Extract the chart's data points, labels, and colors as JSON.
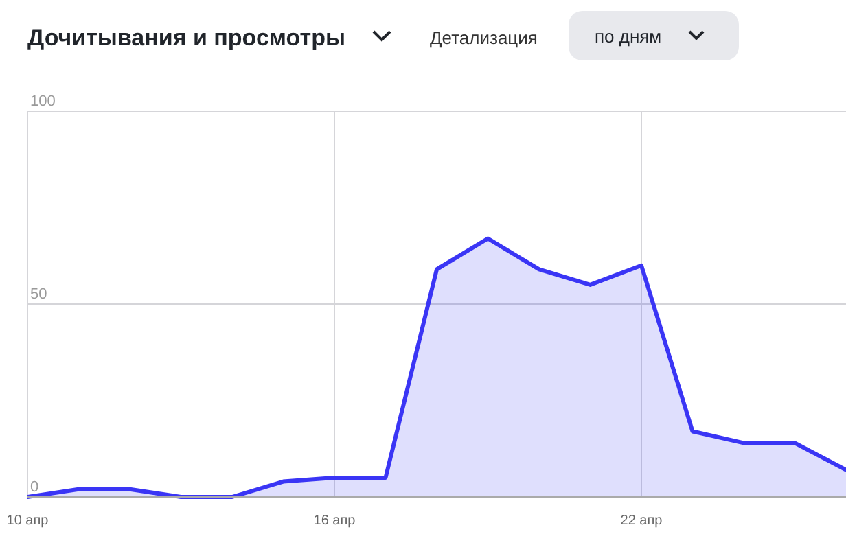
{
  "chart_data": {
    "type": "area",
    "title": "Дочитывания и просмотры",
    "annotations": [
      "Детализация",
      "по дням"
    ],
    "x": [
      "--04-10",
      "--04-11",
      "--04-12",
      "--04-13",
      "--04-14",
      "--04-15",
      "--04-16",
      "--04-17",
      "--04-18",
      "--04-19",
      "--04-20",
      "--04-21",
      "--04-22",
      "--04-23",
      "--04-24",
      "--04-25",
      "--04-26"
    ],
    "series": [
      {
        "color": "#3a35f5",
        "values": [
          0,
          2,
          2,
          0,
          0,
          4,
          5,
          5,
          59,
          67,
          59,
          55,
          60,
          17,
          14,
          14,
          7
        ]
      }
    ],
    "xlim": [
      "--04-10",
      "--04-26"
    ],
    "xticks": [
      {
        "value": "--04-10",
        "label": "10 апр"
      },
      {
        "value": "--04-16",
        "label": "16 апр"
      },
      {
        "value": "--04-22",
        "label": "22 апр"
      }
    ],
    "ylim": [
      0,
      100
    ],
    "yticks": [
      0,
      50,
      100
    ],
    "grid": true
  }
}
